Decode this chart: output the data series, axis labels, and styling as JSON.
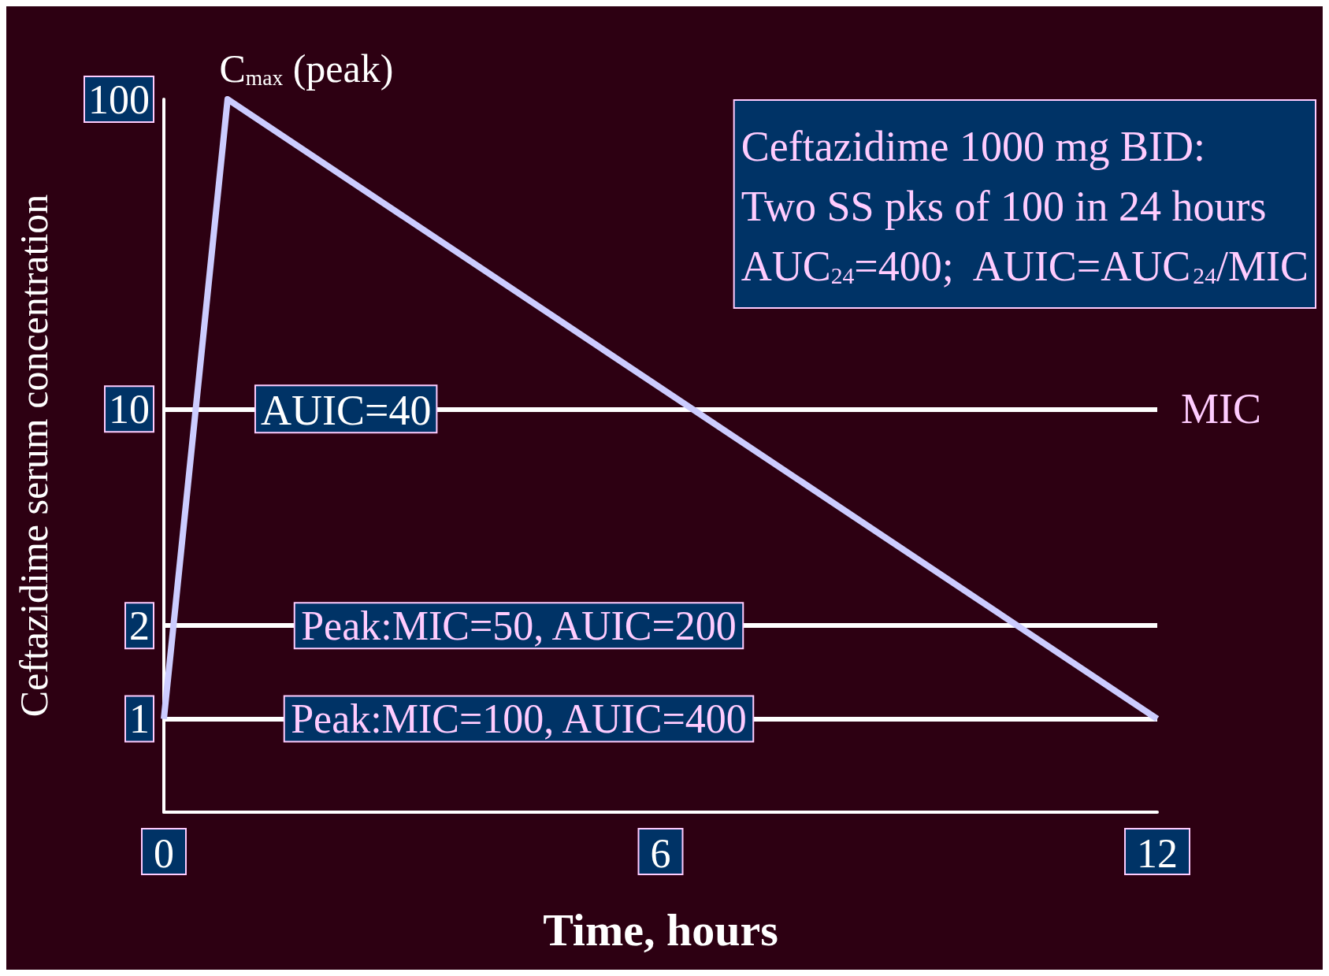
{
  "chart_data": {
    "type": "line",
    "xlabel": "Time, hours",
    "ylabel": "Ceftazidime serum concentration",
    "x": [
      0,
      0.77,
      12
    ],
    "series": [
      {
        "color": "#ccccff",
        "values": [
          1,
          100,
          1
        ]
      }
    ],
    "xlim": [
      0,
      12
    ],
    "xticks": [
      0,
      6,
      12
    ],
    "ylim": [
      0.5,
      100
    ],
    "yticks": [
      1,
      2,
      10,
      100
    ],
    "log": "y",
    "grid": false,
    "marker": "none",
    "ref_lines": [
      {
        "axis": "y",
        "value": 10,
        "label": "MIC",
        "color": "#ffffff"
      },
      {
        "axis": "y",
        "value": 2,
        "label": "Peak:MIC=50, AUIC=200",
        "color": "#ffffff"
      },
      {
        "axis": "y",
        "value": 1,
        "label": "Peak:MIC=100, AUIC=400",
        "color": "#ffffff"
      }
    ],
    "annotations": [
      {
        "text": "C$_{max}$ (peak)",
        "x": 0.77,
        "y": 100
      },
      {
        "text": "AUIC=40",
        "x": 2.2,
        "y": 10
      },
      "Ceftazidime 1000 mg BID:\nTwo SS pks of 100 in 24 hours\nAUC$_{24}$=400;  AUIC=AUC$_{24}$/MIC"
    ]
  }
}
